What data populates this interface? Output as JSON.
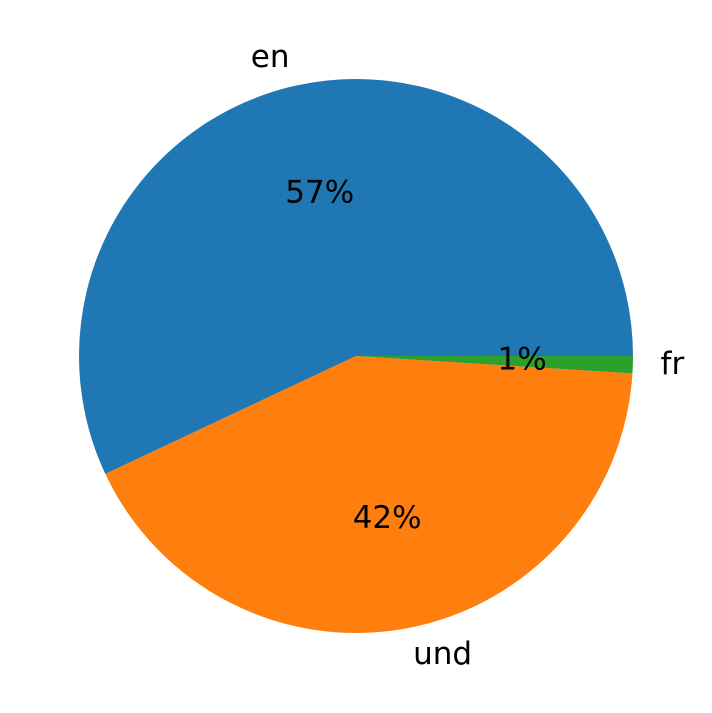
{
  "chart_data": {
    "type": "pie",
    "categories": [
      "en",
      "und",
      "fr"
    ],
    "values": [
      57,
      42,
      1
    ],
    "value_labels": [
      "57%",
      "42%",
      "1%"
    ],
    "colors": [
      "#1f77b4",
      "#ff7f0e",
      "#2ca02c"
    ],
    "start_angle": 0,
    "counterclockwise": true
  }
}
